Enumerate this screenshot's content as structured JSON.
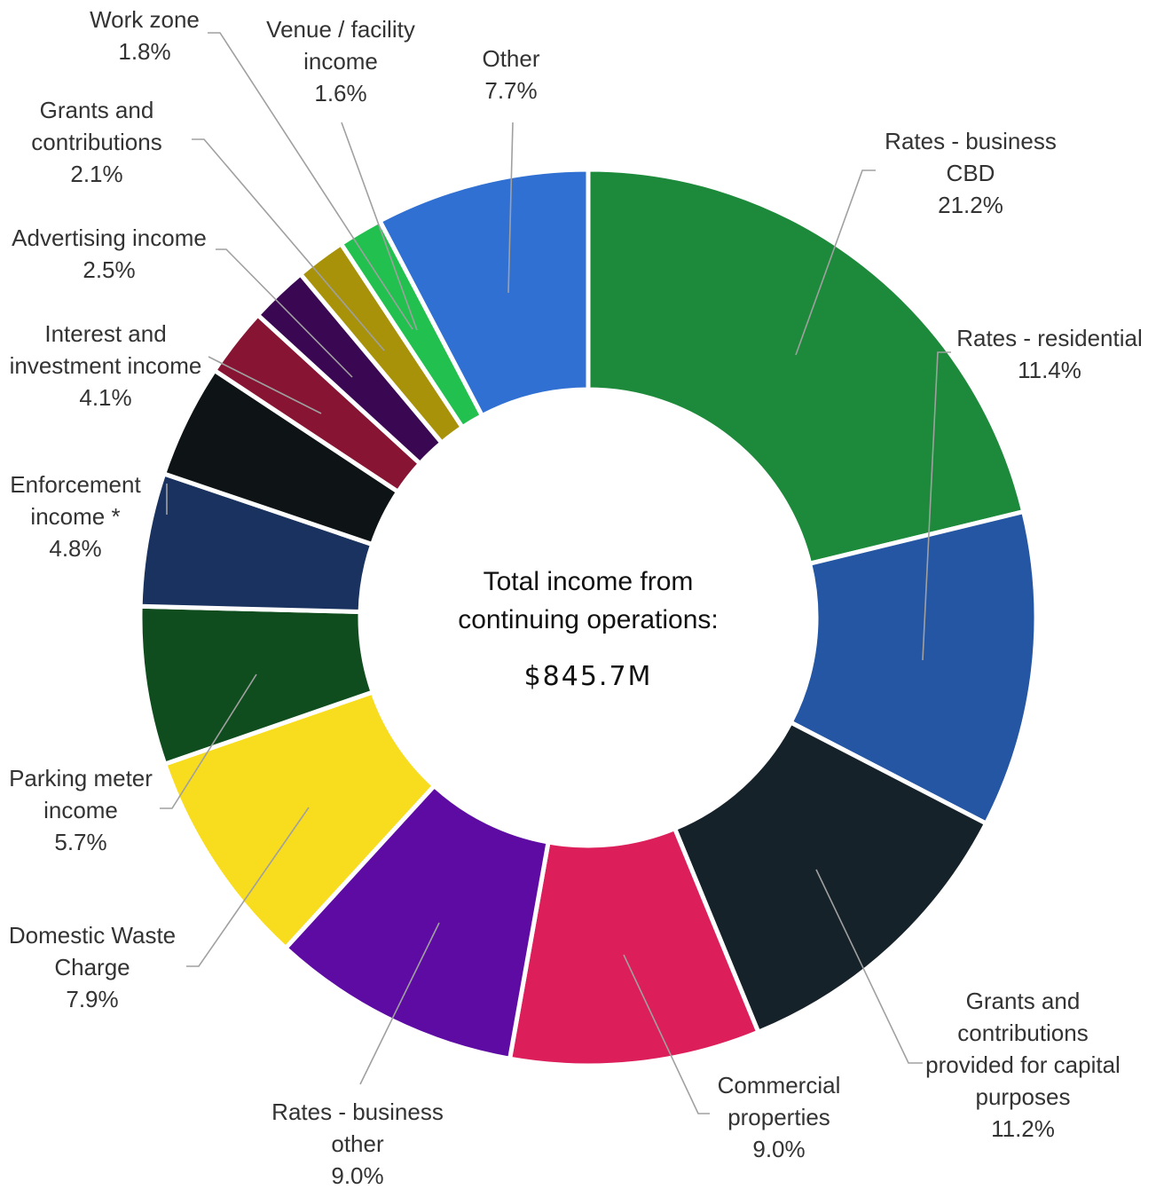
{
  "chart_data": {
    "type": "pie",
    "variant": "donut",
    "center": {
      "title_lines": [
        "Total income from",
        "continuing operations:"
      ],
      "value": "$845.7M"
    },
    "slices": [
      {
        "label_lines": [
          "Rates - business",
          "CBD"
        ],
        "value": 21.2,
        "value_label": "21.2%",
        "color": "#1c8a3a"
      },
      {
        "label_lines": [
          "Rates - residential"
        ],
        "value": 11.4,
        "value_label": "11.4%",
        "color": "#2456a3"
      },
      {
        "label_lines": [
          "Grants and",
          "contributions",
          "provided for capital",
          "purposes"
        ],
        "value": 11.2,
        "value_label": "11.2%",
        "color": "#16222a"
      },
      {
        "label_lines": [
          "Commercial",
          "properties"
        ],
        "value": 9.0,
        "value_label": "9.0%",
        "color": "#dc1f5a"
      },
      {
        "label_lines": [
          "Rates - business",
          "other"
        ],
        "value": 9.0,
        "value_label": "9.0%",
        "color": "#5e0ba3"
      },
      {
        "label_lines": [
          "Domestic Waste",
          "Charge"
        ],
        "value": 7.9,
        "value_label": "7.9%",
        "color": "#f8dc1e"
      },
      {
        "label_lines": [
          "Parking meter",
          "income"
        ],
        "value": 5.7,
        "value_label": "5.7%",
        "color": "#0f4d1e"
      },
      {
        "label_lines": [
          "Enforcement",
          "income *"
        ],
        "value": 4.8,
        "value_label": "4.8%",
        "color": "#19325f"
      },
      {
        "label_lines": [
          "Interest and",
          "investment income"
        ],
        "value": 4.1,
        "value_label": "4.1%",
        "color": "#0e1416"
      },
      {
        "label_lines": [
          "Advertising income"
        ],
        "value": 2.5,
        "value_label": "2.5%",
        "color": "#861432"
      },
      {
        "label_lines": [
          "Grants and",
          "contributions"
        ],
        "value": 2.1,
        "value_label": "2.1%",
        "color": "#3a0753"
      },
      {
        "label_lines": [
          "Work zone"
        ],
        "value": 1.8,
        "value_label": "1.8%",
        "color": "#a8920a"
      },
      {
        "label_lines": [
          "Venue / facility",
          "income"
        ],
        "value": 1.6,
        "value_label": "1.6%",
        "color": "#22c14f"
      },
      {
        "label_lines": [
          "Other"
        ],
        "value": 7.7,
        "value_label": "7.7%",
        "color": "#3070d2"
      }
    ]
  }
}
